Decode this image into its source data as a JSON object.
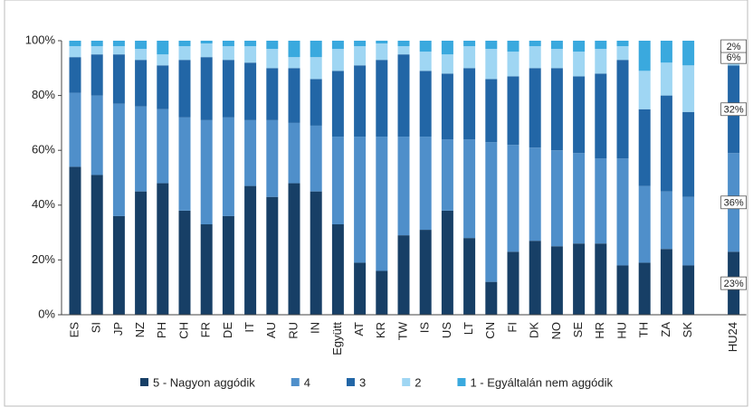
{
  "chart_data": {
    "type": "stacked_bar",
    "categories": [
      "ES",
      "SI",
      "JP",
      "NZ",
      "PH",
      "CH",
      "FR",
      "DE",
      "IT",
      "AU",
      "RU",
      "IN",
      "Együtt",
      "AT",
      "KR",
      "TW",
      "IS",
      "US",
      "LT",
      "CN",
      "FI",
      "DK",
      "NO",
      "SE",
      "HR",
      "HU",
      "TH",
      "ZA",
      "SK",
      "HU24"
    ],
    "series": [
      {
        "name": "5 - Nagyon aggódik",
        "color": "#173f66",
        "values": [
          54,
          51,
          36,
          45,
          48,
          38,
          33,
          36,
          47,
          43,
          48,
          45,
          33,
          19,
          16,
          29,
          31,
          38,
          28,
          12,
          23,
          27,
          25,
          26,
          26,
          18,
          19,
          24,
          18,
          23
        ],
        "value_labels": [
          null,
          null,
          null,
          null,
          null,
          null,
          null,
          null,
          null,
          null,
          null,
          null,
          null,
          null,
          null,
          null,
          null,
          null,
          null,
          null,
          null,
          null,
          null,
          null,
          null,
          null,
          null,
          null,
          null,
          "23%"
        ]
      },
      {
        "name": "4",
        "color": "#4f8fca",
        "values": [
          27,
          29,
          41,
          31,
          27,
          34,
          38,
          36,
          24,
          28,
          22,
          24,
          32,
          46,
          49,
          36,
          34,
          26,
          36,
          51,
          39,
          34,
          35,
          33,
          31,
          39,
          28,
          21,
          25,
          36
        ],
        "value_labels": [
          null,
          null,
          null,
          null,
          null,
          null,
          null,
          null,
          null,
          null,
          null,
          null,
          null,
          null,
          null,
          null,
          null,
          null,
          null,
          null,
          null,
          null,
          null,
          null,
          null,
          null,
          null,
          null,
          null,
          "36%"
        ]
      },
      {
        "name": "3",
        "color": "#2266a6",
        "values": [
          13,
          15,
          18,
          17,
          16,
          21,
          23,
          21,
          21,
          19,
          20,
          17,
          24,
          26,
          28,
          30,
          24,
          24,
          26,
          23,
          25,
          29,
          30,
          28,
          31,
          36,
          28,
          35,
          31,
          32
        ],
        "value_labels": [
          null,
          null,
          null,
          null,
          null,
          null,
          null,
          null,
          null,
          null,
          null,
          null,
          null,
          null,
          null,
          null,
          null,
          null,
          null,
          null,
          null,
          null,
          null,
          null,
          null,
          null,
          null,
          null,
          null,
          "32%"
        ]
      },
      {
        "name": "2",
        "color": "#9fd6f3",
        "values": [
          4,
          3,
          3,
          4,
          4,
          5,
          5,
          5,
          6,
          7,
          4,
          8,
          8,
          7,
          6,
          3,
          7,
          7,
          8,
          11,
          9,
          8,
          7,
          9,
          9,
          5,
          14,
          12,
          17,
          6
        ],
        "value_labels": [
          null,
          null,
          null,
          null,
          null,
          null,
          null,
          null,
          null,
          null,
          null,
          null,
          null,
          null,
          null,
          null,
          null,
          null,
          null,
          null,
          null,
          null,
          null,
          null,
          null,
          null,
          null,
          null,
          null,
          "6%"
        ]
      },
      {
        "name": "1 - Egyáltalán nem aggódik",
        "color": "#3aa9de",
        "values": [
          2,
          2,
          2,
          3,
          5,
          2,
          1,
          2,
          2,
          3,
          6,
          6,
          3,
          2,
          1,
          2,
          4,
          5,
          2,
          3,
          4,
          2,
          3,
          4,
          3,
          2,
          11,
          8,
          9,
          2
        ],
        "value_labels": [
          null,
          null,
          null,
          null,
          null,
          null,
          null,
          null,
          null,
          null,
          null,
          null,
          null,
          null,
          null,
          null,
          null,
          null,
          null,
          null,
          null,
          null,
          null,
          null,
          null,
          null,
          null,
          null,
          null,
          "2%"
        ]
      }
    ],
    "ylim": [
      0,
      100
    ],
    "yticks": [
      {
        "value": 0,
        "label": "0%"
      },
      {
        "value": 20,
        "label": "20%"
      },
      {
        "value": 40,
        "label": "40%"
      },
      {
        "value": 60,
        "label": "60%"
      },
      {
        "value": 80,
        "label": "80%"
      },
      {
        "value": 100,
        "label": "100%"
      }
    ],
    "legend": "bottom"
  }
}
